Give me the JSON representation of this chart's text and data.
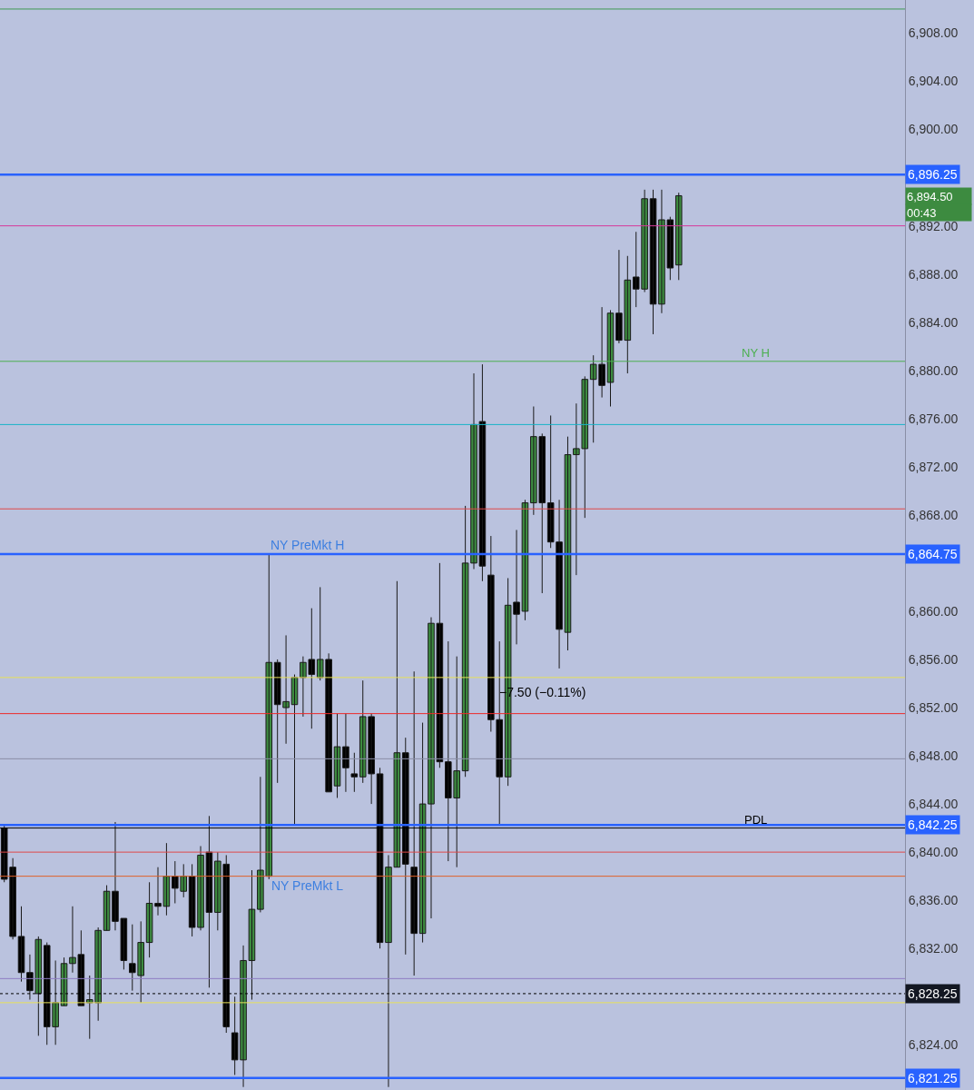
{
  "chart_data": {
    "type": "candlestick",
    "categories": [
      null,
      null,
      null,
      null,
      null,
      null,
      null,
      null,
      null,
      null,
      null,
      null,
      null,
      null,
      null,
      null,
      null,
      null,
      null,
      null,
      null,
      null,
      null,
      null,
      null,
      null,
      null,
      null,
      null,
      null,
      null,
      null,
      null,
      null,
      null,
      null,
      null,
      null,
      null,
      null,
      null,
      null,
      null,
      null,
      null,
      null,
      null,
      null,
      null,
      null,
      null,
      null,
      null,
      null,
      null,
      null,
      null,
      null,
      null,
      null,
      null,
      null,
      null,
      null,
      null,
      null,
      null,
      null,
      null,
      null,
      null,
      null,
      null,
      null,
      null,
      null,
      null,
      null,
      null,
      null,
      null,
      null,
      null,
      null,
      null,
      null,
      null,
      null,
      null,
      null,
      null,
      null,
      null,
      null,
      null,
      null,
      null,
      null,
      null,
      null,
      null,
      null,
      null,
      null,
      null,
      null
    ],
    "ohlc": [
      [
        6842,
        6842.25,
        6837.5,
        6837.75
      ],
      [
        6838.75,
        6839.5,
        6832.75,
        6833
      ],
      [
        6833,
        6835.5,
        6829.25,
        6830
      ],
      [
        6830,
        6831.5,
        6827.75,
        6828.5
      ],
      [
        6828.25,
        6833,
        6824.75,
        6832.75
      ],
      [
        6832.25,
        6832.5,
        6824,
        6825.5
      ],
      [
        6825.5,
        6831,
        6824,
        6827.5
      ],
      [
        6827.25,
        6831.25,
        6827.25,
        6830.75
      ],
      [
        6830.75,
        6835.5,
        6830,
        6831.25
      ],
      [
        6831.5,
        6833.5,
        6827.25,
        6827.25
      ],
      [
        6827.5,
        6829.75,
        6824.5,
        6827.75
      ],
      [
        6827.5,
        6833.75,
        6826,
        6833.5
      ],
      [
        6833.5,
        6837.25,
        6833.5,
        6836.75
      ],
      [
        6836.75,
        6842.5,
        6833.5,
        6834.25
      ],
      [
        6834.5,
        6834.5,
        6830.25,
        6831
      ],
      [
        6830.75,
        6834,
        6828.5,
        6830
      ],
      [
        6829.75,
        6834.25,
        6827.5,
        6832.5
      ],
      [
        6832.5,
        6837.5,
        6831.25,
        6835.75
      ],
      [
        6835.75,
        6838.75,
        6834.75,
        6835.5
      ],
      [
        6835.5,
        6840.75,
        6834.75,
        6838
      ],
      [
        6838,
        6839.25,
        6835.75,
        6837
      ],
      [
        6836.75,
        6839,
        6836.25,
        6838
      ],
      [
        6838,
        6839,
        6833,
        6833.75
      ],
      [
        6833.75,
        6840.5,
        6833.5,
        6839.75
      ],
      [
        6840,
        6843,
        6828.75,
        6835
      ],
      [
        6835,
        6840,
        6833.5,
        6839.25
      ],
      [
        6839,
        6839.75,
        6825,
        6825.5
      ],
      [
        6825,
        6828,
        6821.5,
        6822.75
      ],
      [
        6822.75,
        6832.25,
        6820.5,
        6831
      ],
      [
        6831,
        6838.5,
        6827.75,
        6835.25
      ],
      [
        6835.25,
        6846.25,
        6835,
        6838.5
      ],
      [
        6838,
        6864.75,
        6837.75,
        6855.75
      ],
      [
        6855.75,
        6856,
        6845.75,
        6852.25
      ],
      [
        6852,
        6858,
        6849,
        6852.5
      ],
      [
        6852.25,
        6854.75,
        6842.25,
        6854.5
      ],
      [
        6854.5,
        6856.25,
        6851.25,
        6855.75
      ],
      [
        6856,
        6860.25,
        6850.25,
        6854.75
      ],
      [
        6854.5,
        6862,
        6854.25,
        6856
      ],
      [
        6856,
        6856.5,
        6845,
        6845
      ],
      [
        6845.5,
        6851.5,
        6844.5,
        6848.75
      ],
      [
        6848.75,
        6851.5,
        6845,
        6847
      ],
      [
        6846.5,
        6848.25,
        6845,
        6846.25
      ],
      [
        6846.25,
        6854.25,
        6845.75,
        6851.25
      ],
      [
        6851.25,
        6851.5,
        6844,
        6846.5
      ],
      [
        6846.5,
        6847,
        6832,
        6832.5
      ],
      [
        6832.5,
        6839.75,
        6820.5,
        6838.75
      ],
      [
        6838.75,
        6862.5,
        6838.75,
        6848.25
      ],
      [
        6848.25,
        6849.5,
        6831.5,
        6839
      ],
      [
        6838.75,
        6855,
        6829.75,
        6833.25
      ],
      [
        6833.25,
        6850.75,
        6832.5,
        6844
      ],
      [
        6844,
        6859.5,
        6834.5,
        6859
      ],
      [
        6859,
        6864,
        6847,
        6847.5
      ],
      [
        6847.5,
        6857.5,
        6839.25,
        6844.5
      ],
      [
        6844.5,
        6856.25,
        6838.75,
        6846.75
      ],
      [
        6846.75,
        6868.75,
        6846.25,
        6864
      ],
      [
        6864,
        6879.75,
        6863.5,
        6875.5
      ],
      [
        6875.75,
        6880.5,
        6862.5,
        6863.75
      ],
      [
        6863,
        6866.25,
        6850,
        6851
      ],
      [
        6851,
        6857.5,
        6842.25,
        6846.25
      ],
      [
        6846.25,
        6862.75,
        6845.5,
        6860.5
      ],
      [
        6860.75,
        6866.75,
        6857.25,
        6859.75
      ],
      [
        6860,
        6869.25,
        6859.25,
        6869
      ],
      [
        6869,
        6877,
        6868,
        6874.5
      ],
      [
        6874.5,
        6874.75,
        6861.5,
        6869
      ],
      [
        6869,
        6876.25,
        6865.25,
        6865.75
      ],
      [
        6865.75,
        6869.25,
        6855.25,
        6858.5
      ],
      [
        6858.25,
        6874.5,
        6856.75,
        6873
      ],
      [
        6873,
        6877.25,
        6863,
        6873.5
      ],
      [
        6873.5,
        6879.5,
        6867.75,
        6879.25
      ],
      [
        6879.25,
        6881.25,
        6874,
        6880.5
      ],
      [
        6880.5,
        6885.25,
        6877.75,
        6878.75
      ],
      [
        6879,
        6885,
        6877,
        6884.75
      ],
      [
        6884.75,
        6890,
        6882.25,
        6882.5
      ],
      [
        6882.5,
        6889.5,
        6879.75,
        6887.5
      ],
      [
        6887.75,
        6891.5,
        6885.25,
        6886.75
      ],
      [
        6886.75,
        6895,
        6886.5,
        6894.25
      ],
      [
        6894.25,
        6895,
        6883,
        6885.5
      ],
      [
        6885.5,
        6895,
        6884.75,
        6892.5
      ],
      [
        6892.5,
        6892.75,
        6887.5,
        6888.5
      ],
      [
        6888.75,
        6894.75,
        6887.5,
        6894.5
      ],
      null,
      null,
      null,
      null,
      null,
      null,
      null,
      null,
      null,
      null,
      null,
      null,
      null,
      null,
      null,
      null,
      null,
      null,
      null,
      null,
      null,
      null,
      null,
      null,
      null,
      null
    ],
    "colors": [
      "#000000",
      "#000000",
      "#000000",
      "#000000",
      "#3d8b40",
      "#000000",
      "#3d8b40",
      "#3d8b40",
      "#3d8b40",
      "#000000",
      "#3d8b40",
      "#3d8b40",
      "#3d8b40",
      "#000000",
      "#000000",
      "#000000",
      "#3d8b40",
      "#3d8b40",
      "#000000",
      "#3d8b40",
      "#000000",
      "#3d8b40",
      "#000000",
      "#3d8b40",
      "#000000",
      "#3d8b40",
      "#000000",
      "#000000",
      "#3d8b40",
      "#3d8b40",
      "#3d8b40",
      "#3d8b40",
      "#000000",
      "#3d8b40",
      "#3d8b40",
      "#3d8b40",
      "#000000",
      "#3d8b40",
      "#000000",
      "#3d8b40",
      "#000000",
      "#000000",
      "#3d8b40",
      "#000000",
      "#000000",
      "#3d8b40",
      "#3d8b40",
      "#000000",
      "#000000",
      "#3d8b40",
      "#3d8b40",
      "#000000",
      "#000000",
      "#3d8b40",
      "#3d8b40",
      "#3d8b40",
      "#000000",
      "#000000",
      "#000000",
      "#3d8b40",
      "#000000",
      "#3d8b40",
      "#3d8b40",
      "#000000",
      "#000000",
      "#000000",
      "#3d8b40",
      "#3d8b40",
      "#3d8b40",
      "#3d8b40",
      "#000000",
      "#3d8b40",
      "#000000",
      "#3d8b40",
      "#000000",
      "#3d8b40",
      "#000000",
      "#3d8b40",
      "#000000",
      "#3d8b40",
      null,
      null,
      null,
      null,
      null,
      null,
      null,
      null,
      null,
      null,
      null,
      null,
      null,
      null,
      null,
      null,
      null,
      null,
      null,
      null,
      null,
      null,
      null,
      null,
      null,
      null
    ],
    "ylim": [
      6820.25,
      6910.75
    ],
    "yticks": [
      {
        "value": 6824,
        "label": "6,824.00"
      },
      {
        "value": 6832,
        "label": "6,832.00"
      },
      {
        "value": 6836,
        "label": "6,836.00"
      },
      {
        "value": 6840,
        "label": "6,840.00"
      },
      {
        "value": 6844,
        "label": "6,844.00"
      },
      {
        "value": 6848,
        "label": "6,848.00"
      },
      {
        "value": 6852,
        "label": "6,852.00"
      },
      {
        "value": 6856,
        "label": "6,856.00"
      },
      {
        "value": 6860,
        "label": "6,860.00"
      },
      {
        "value": 6868,
        "label": "6,868.00"
      },
      {
        "value": 6872,
        "label": "6,872.00"
      },
      {
        "value": 6876,
        "label": "6,876.00"
      },
      {
        "value": 6880,
        "label": "6,880.00"
      },
      {
        "value": 6884,
        "label": "6,884.00"
      },
      {
        "value": 6888,
        "label": "6,888.00"
      },
      {
        "value": 6892,
        "label": "6,892.00"
      },
      {
        "value": 6900,
        "label": "6,900.00"
      },
      {
        "value": 6904,
        "label": "6,904.00"
      },
      {
        "value": 6908,
        "label": "6,908.00"
      }
    ],
    "tick_labels": "y",
    "grid": false,
    "ref_lines": [
      {
        "axis": "y",
        "value": 6910,
        "color": "#3f9a55"
      },
      {
        "axis": "y",
        "value": 6896.25,
        "color": "#2962ff",
        "label": "6,896.25"
      },
      {
        "axis": "y",
        "value": 6892,
        "color": "#d63a9a"
      },
      {
        "axis": "y",
        "value": 6880.75,
        "color": "#4caf50",
        "label": "NY H"
      },
      {
        "axis": "y",
        "value": 6875.5,
        "color": "#17b3c8"
      },
      {
        "axis": "y",
        "value": 6868.5,
        "color": "#e04848"
      },
      {
        "axis": "y",
        "value": 6864.75,
        "color": "#2962ff",
        "label": "6,864.75"
      },
      {
        "axis": "y",
        "value": 6854.5,
        "color": "#e8e05a"
      },
      {
        "axis": "y",
        "value": 6851.5,
        "color": "#ee2a2a"
      },
      {
        "axis": "y",
        "value": 6847.75,
        "color": "#8a8ea6"
      },
      {
        "axis": "y",
        "value": 6842.25,
        "color": "#2962ff",
        "label": "6,842.25"
      },
      {
        "axis": "y",
        "value": 6842,
        "color": "#000000",
        "label": "PDL"
      },
      {
        "axis": "y",
        "value": 6840,
        "color": "#e04848"
      },
      {
        "axis": "y",
        "value": 6838,
        "color": "#e0622a"
      },
      {
        "axis": "y",
        "value": 6829.5,
        "color": "#8e7cc3"
      },
      {
        "axis": "y",
        "value": 6828.25,
        "color": "#000000",
        "line_style": "dotted",
        "label": "6,828.25"
      },
      {
        "axis": "y",
        "value": 6827.5,
        "color": "#e8e05a"
      },
      {
        "axis": "y",
        "value": 6821.25,
        "color": "#2962ff",
        "label": "6,821.25"
      }
    ],
    "annotations": [
      {
        "text": "NY PreMkt H",
        "y": 6864.75
      },
      {
        "text": "NY PreMkt L",
        "y": 6838
      },
      "−7.50 (−0.11%)",
      "6,894.50",
      "00:43"
    ]
  }
}
